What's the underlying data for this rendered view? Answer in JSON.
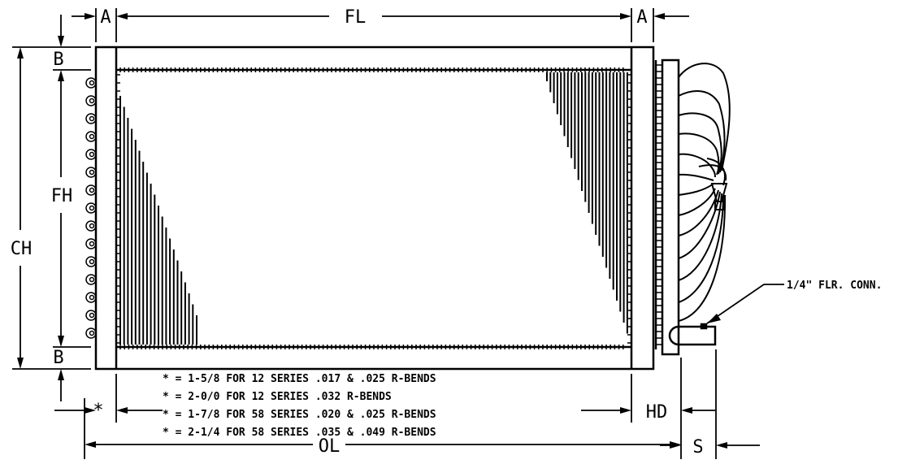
{
  "dimension_labels": {
    "a_left": "A",
    "fl": "FL",
    "a_right": "A",
    "b_top": "B",
    "fh": "FH",
    "ch": "CH",
    "b_bottom": "B",
    "star": "*",
    "hd": "HD",
    "ol": "OL",
    "s": "S"
  },
  "callout": {
    "connection": "1/4\" FLR. CONN."
  },
  "notes": [
    "* = 1-5/8 FOR 12 SERIES .017 & .025 R-BENDS",
    "* = 2-0/0 FOR 12 SERIES .032 R-BENDS",
    "* = 1-7/8 FOR 58 SERIES .020 & .025 R-BENDS",
    "* = 2-1/4 FOR 58 SERIES .035 & .049 R-BENDS"
  ]
}
